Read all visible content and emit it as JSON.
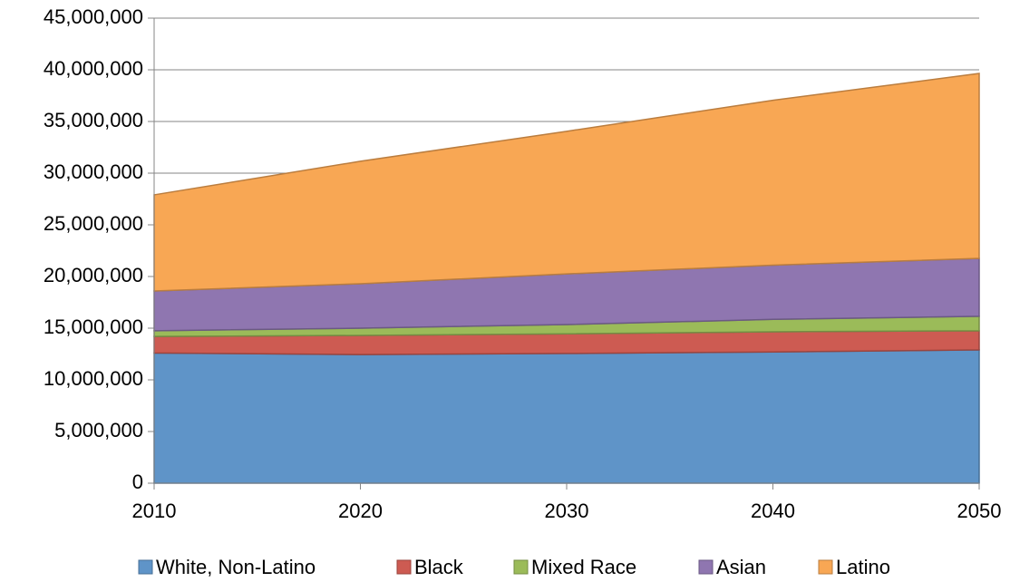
{
  "chart_data": {
    "type": "stacked_area",
    "x": [
      2010,
      2020,
      2030,
      2040,
      2050
    ],
    "series": [
      {
        "name": "White, Non-Latino",
        "color": "#5f94c8",
        "values": [
          12600000,
          12450000,
          12550000,
          12700000,
          12900000
        ]
      },
      {
        "name": "Black",
        "color": "#cd5b52",
        "values": [
          1600000,
          1850000,
          1900000,
          1950000,
          1850000
        ]
      },
      {
        "name": "Mixed Race",
        "color": "#9bbb59",
        "values": [
          550000,
          700000,
          900000,
          1200000,
          1400000
        ]
      },
      {
        "name": "Asian",
        "color": "#8f76b0",
        "values": [
          3850000,
          4300000,
          4900000,
          5250000,
          5600000
        ]
      },
      {
        "name": "Latino",
        "color": "#f8a754",
        "values": [
          9300000,
          11850000,
          13800000,
          15950000,
          17900000
        ]
      }
    ],
    "xlim": [
      2010,
      2050
    ],
    "xticks": [
      2010,
      2020,
      2030,
      2040,
      2050
    ],
    "ylim": [
      0,
      45000000
    ],
    "yticks": [
      0,
      {
        "value": 5000000,
        "label": "5,000,000"
      },
      {
        "value": 10000000,
        "label": "10,000,000"
      },
      {
        "value": 15000000,
        "label": "15,000,000"
      },
      {
        "value": 20000000,
        "label": "20,000,000"
      },
      {
        "value": 25000000,
        "label": "25,000,000"
      },
      {
        "value": 30000000,
        "label": "30,000,000"
      },
      {
        "value": 35000000,
        "label": "35,000,000"
      },
      {
        "value": 40000000,
        "label": "40,000,000"
      },
      {
        "value": 45000000,
        "label": "45,000,000"
      }
    ],
    "grid": true,
    "legend": "bottom"
  }
}
